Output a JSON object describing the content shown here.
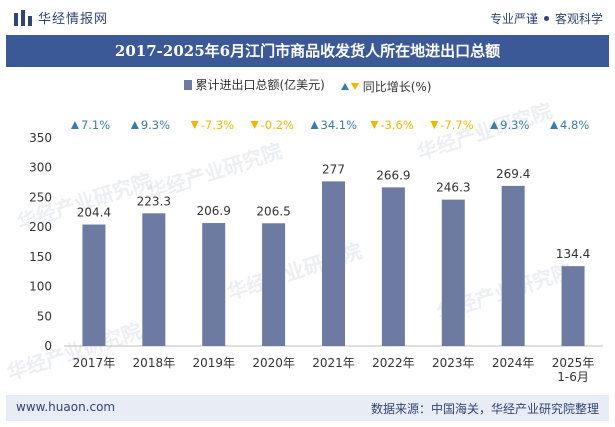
{
  "header": {
    "brand_name": "华经情报网",
    "slogan_left": "专业严谨",
    "slogan_right": "客观科学"
  },
  "watermarks": [
    "华经产业研究院",
    "www.huaon.com"
  ],
  "colors": {
    "bar": "#6d7ba3",
    "up": "#3a7ca5",
    "down": "#f2b800",
    "title_bg": "#3b5897"
  },
  "footer": {
    "left": "www.huaon.com",
    "right": "数据来源：中国海关，华经产业研究院整理"
  },
  "chart_data": {
    "type": "bar",
    "title": "2017-2025年6月江门市商品收发货人所在地进出口总额",
    "categories": [
      "2017年",
      "2018年",
      "2019年",
      "2020年",
      "2021年",
      "2022年",
      "2023年",
      "2024年",
      "2025年\n1-6月"
    ],
    "series": [
      {
        "name": "累计进出口总额(亿美元)",
        "values": [
          204.4,
          223.3,
          206.9,
          206.5,
          277,
          266.9,
          246.3,
          269.4,
          134.4
        ]
      }
    ],
    "growth": {
      "name": "同比增长(%)",
      "values": [
        7.1,
        9.3,
        -7.3,
        -0.2,
        34.1,
        -3.6,
        -7.7,
        9.3,
        4.8
      ]
    },
    "ylim": [
      0,
      350
    ],
    "yticks": [
      0,
      50,
      100,
      150,
      200,
      250,
      300,
      350
    ],
    "xlabel": "",
    "ylabel": "",
    "grid": false,
    "legend_position": "top-center"
  }
}
